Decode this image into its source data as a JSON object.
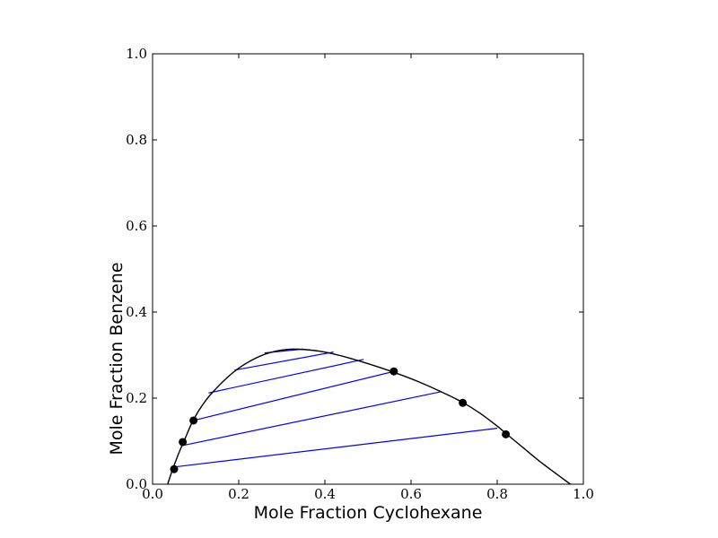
{
  "chart_data": {
    "type": "line",
    "title": "",
    "xlabel": "Mole Fraction Cyclohexane",
    "ylabel": "Mole Fraction Benzene",
    "xlim": [
      0.0,
      1.0
    ],
    "ylim": [
      0.0,
      1.0
    ],
    "x_ticks": [
      "0.0",
      "0.2",
      "0.4",
      "0.6",
      "0.8",
      "1.0"
    ],
    "y_ticks": [
      "0.0",
      "0.2",
      "0.4",
      "0.6",
      "0.8",
      "1.0"
    ],
    "grid": false,
    "legend": "none",
    "colors": {
      "curve": "#000000",
      "tie_lines": "#0000ff",
      "points": "#000000"
    },
    "binodal_curve": [
      [
        0.035,
        0.0
      ],
      [
        0.045,
        0.03
      ],
      [
        0.06,
        0.07
      ],
      [
        0.075,
        0.105
      ],
      [
        0.095,
        0.15
      ],
      [
        0.12,
        0.19
      ],
      [
        0.15,
        0.225
      ],
      [
        0.19,
        0.262
      ],
      [
        0.23,
        0.288
      ],
      [
        0.27,
        0.305
      ],
      [
        0.31,
        0.313
      ],
      [
        0.35,
        0.313
      ],
      [
        0.4,
        0.307
      ],
      [
        0.45,
        0.295
      ],
      [
        0.5,
        0.28
      ],
      [
        0.56,
        0.26
      ],
      [
        0.62,
        0.237
      ],
      [
        0.68,
        0.21
      ],
      [
        0.72,
        0.19
      ],
      [
        0.76,
        0.165
      ],
      [
        0.8,
        0.135
      ],
      [
        0.82,
        0.118
      ],
      [
        0.86,
        0.085
      ],
      [
        0.9,
        0.052
      ],
      [
        0.94,
        0.022
      ],
      [
        0.97,
        0.0
      ]
    ],
    "tie_lines": [
      [
        [
          0.05,
          0.04
        ],
        [
          0.8,
          0.13
        ]
      ],
      [
        [
          0.07,
          0.09
        ],
        [
          0.67,
          0.215
        ]
      ],
      [
        [
          0.095,
          0.148
        ],
        [
          0.56,
          0.262
        ]
      ],
      [
        [
          0.13,
          0.212
        ],
        [
          0.49,
          0.29
        ]
      ],
      [
        [
          0.19,
          0.265
        ],
        [
          0.42,
          0.307
        ]
      ],
      [
        [
          0.26,
          0.305
        ],
        [
          0.35,
          0.314
        ]
      ]
    ],
    "data_points": [
      [
        0.05,
        0.035
      ],
      [
        0.07,
        0.098
      ],
      [
        0.095,
        0.148
      ],
      [
        0.56,
        0.262
      ],
      [
        0.72,
        0.189
      ],
      [
        0.82,
        0.116
      ]
    ]
  }
}
